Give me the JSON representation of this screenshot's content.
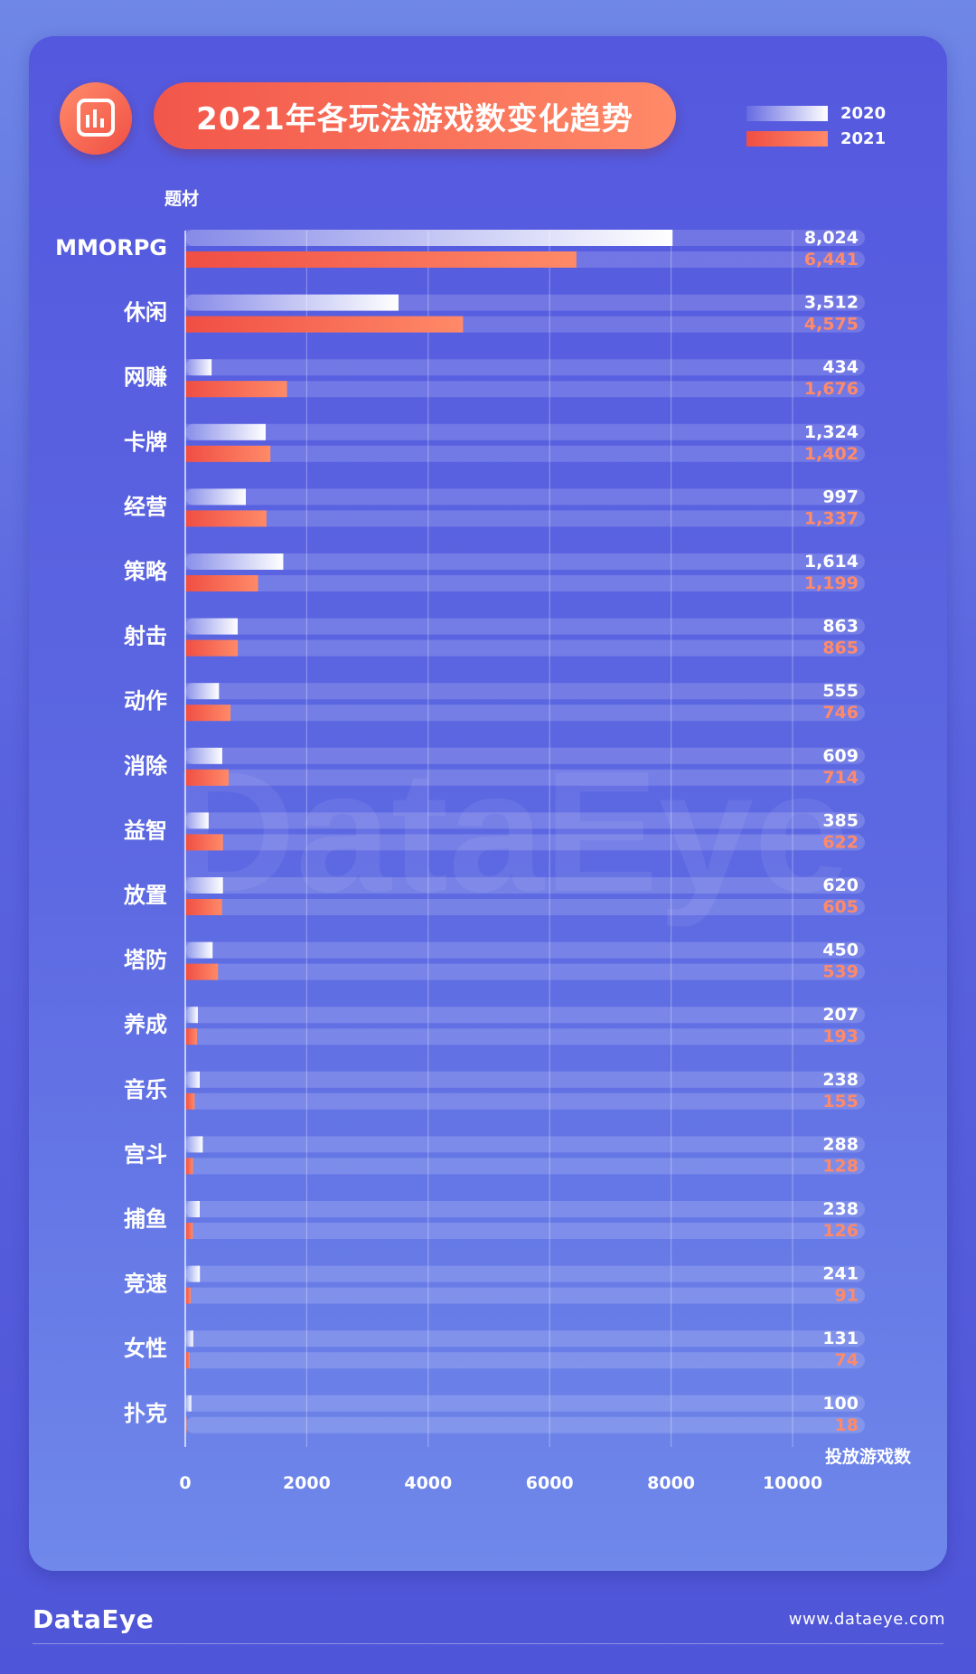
{
  "title": "2021年各玩法游戏数变化趋势",
  "legend": [
    {
      "label": "2020",
      "color": "#ffffff"
    },
    {
      "label": "2021",
      "color": "#f4594b"
    }
  ],
  "footer": {
    "brand": "DataEye",
    "website": "www.dataeye.com"
  },
  "watermark": "DataEye",
  "chart_data": {
    "type": "bar",
    "orientation": "horizontal",
    "title": "2021年各玩法游戏数变化趋势",
    "ylabel": "题材",
    "xlabel": "投放游戏数",
    "xlim": [
      0,
      10000
    ],
    "xticks": [
      0,
      2000,
      4000,
      6000,
      8000,
      10000
    ],
    "grid": true,
    "legend_position": "top-right",
    "categories": [
      "MMORPG",
      "休闲",
      "网赚",
      "卡牌",
      "经营",
      "策略",
      "射击",
      "动作",
      "消除",
      "益智",
      "放置",
      "塔防",
      "养成",
      "音乐",
      "宫斗",
      "捕鱼",
      "竞速",
      "女性",
      "扑克"
    ],
    "series": [
      {
        "name": "2020",
        "color": "#ffffff",
        "values": [
          8024,
          3512,
          434,
          1324,
          997,
          1614,
          863,
          555,
          609,
          385,
          620,
          450,
          207,
          238,
          288,
          238,
          241,
          131,
          100
        ],
        "labels": [
          "8,024",
          "3,512",
          "434",
          "1,324",
          "997",
          "1,614",
          "863",
          "555",
          "609",
          "385",
          "620",
          "450",
          "207",
          "238",
          "288",
          "238",
          "241",
          "131",
          "100"
        ]
      },
      {
        "name": "2021",
        "color": "#f4594b",
        "values": [
          6441,
          4575,
          1676,
          1402,
          1337,
          1199,
          865,
          746,
          714,
          622,
          605,
          539,
          193,
          155,
          128,
          126,
          91,
          74,
          18
        ],
        "labels": [
          "6,441",
          "4,575",
          "1,676",
          "1,402",
          "1,337",
          "1,199",
          "865",
          "746",
          "714",
          "622",
          "605",
          "539",
          "193",
          "155",
          "128",
          "126",
          "91",
          "74",
          "18"
        ]
      }
    ]
  }
}
